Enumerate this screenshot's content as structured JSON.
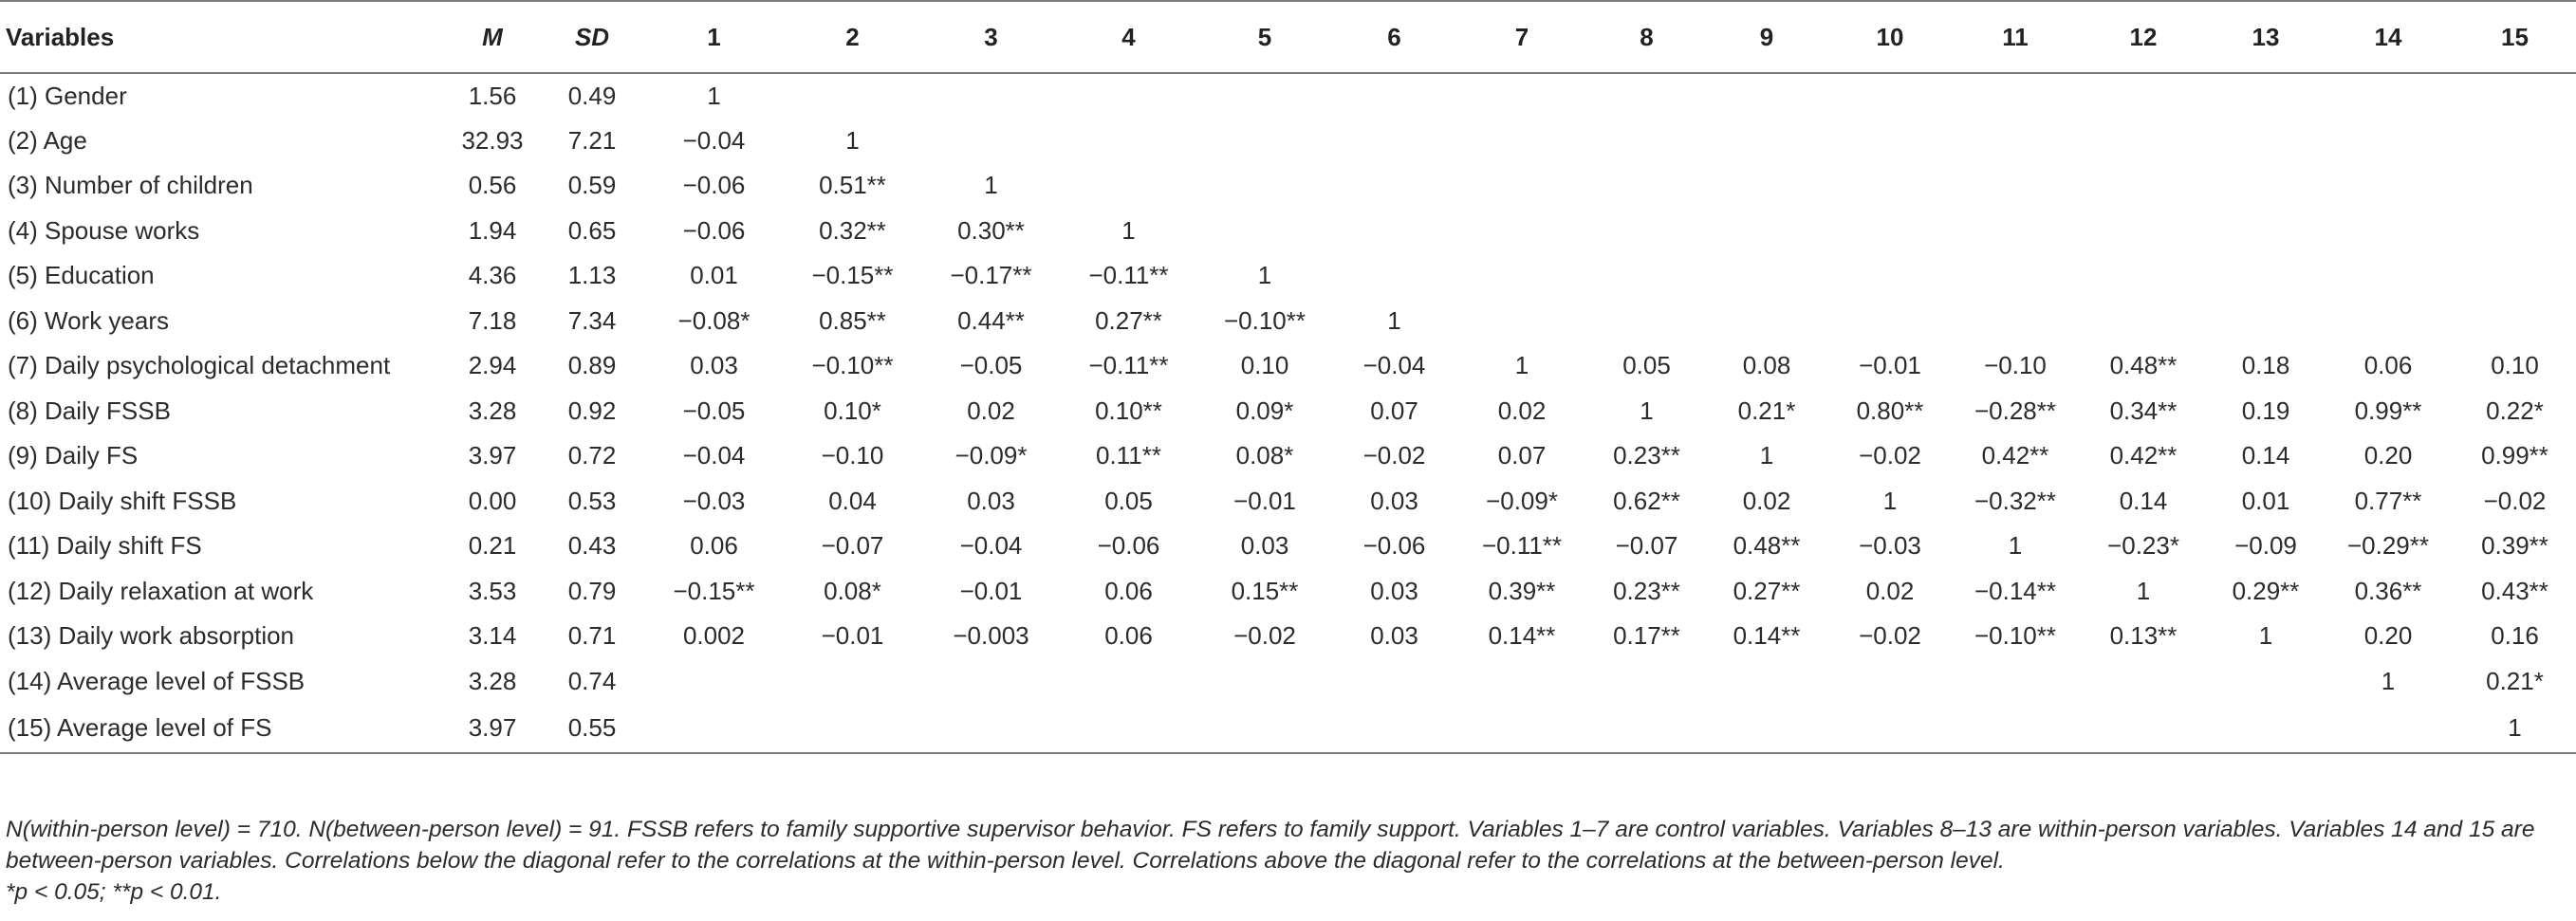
{
  "table": {
    "headers": [
      "Variables",
      "M",
      "SD",
      "1",
      "2",
      "3",
      "4",
      "5",
      "6",
      "7",
      "8",
      "9",
      "10",
      "11",
      "12",
      "13",
      "14",
      "15"
    ],
    "rows": [
      [
        "(1) Gender",
        "1.56",
        "0.49",
        "1",
        "",
        "",
        "",
        "",
        "",
        "",
        "",
        "",
        "",
        "",
        "",
        "",
        "",
        ""
      ],
      [
        "(2) Age",
        "32.93",
        "7.21",
        "−0.04",
        "1",
        "",
        "",
        "",
        "",
        "",
        "",
        "",
        "",
        "",
        "",
        "",
        "",
        ""
      ],
      [
        "(3) Number of children",
        "0.56",
        "0.59",
        "−0.06",
        "0.51**",
        "1",
        "",
        "",
        "",
        "",
        "",
        "",
        "",
        "",
        "",
        "",
        "",
        ""
      ],
      [
        "(4) Spouse works",
        "1.94",
        "0.65",
        "−0.06",
        "0.32**",
        "0.30**",
        "1",
        "",
        "",
        "",
        "",
        "",
        "",
        "",
        "",
        "",
        "",
        ""
      ],
      [
        "(5) Education",
        "4.36",
        "1.13",
        "0.01",
        "−0.15**",
        "−0.17**",
        "−0.11**",
        "1",
        "",
        "",
        "",
        "",
        "",
        "",
        "",
        "",
        "",
        ""
      ],
      [
        "(6) Work years",
        "7.18",
        "7.34",
        "−0.08*",
        "0.85**",
        "0.44**",
        "0.27**",
        "−0.10**",
        "1",
        "",
        "",
        "",
        "",
        "",
        "",
        "",
        "",
        ""
      ],
      [
        "(7) Daily psychological detachment",
        "2.94",
        "0.89",
        "0.03",
        "−0.10**",
        "−0.05",
        "−0.11**",
        "0.10",
        "−0.04",
        "1",
        "0.05",
        "0.08",
        "−0.01",
        "−0.10",
        "0.48**",
        "0.18",
        "0.06",
        "0.10"
      ],
      [
        "(8) Daily FSSB",
        "3.28",
        "0.92",
        "−0.05",
        "0.10*",
        "0.02",
        "0.10**",
        "0.09*",
        "0.07",
        "0.02",
        "1",
        "0.21*",
        "0.80**",
        "−0.28**",
        "0.34**",
        "0.19",
        "0.99**",
        "0.22*"
      ],
      [
        "(9) Daily FS",
        "3.97",
        "0.72",
        "−0.04",
        "−0.10",
        "−0.09*",
        "0.11**",
        "0.08*",
        "−0.02",
        "0.07",
        "0.23**",
        "1",
        "−0.02",
        "0.42**",
        "0.42**",
        "0.14",
        "0.20",
        "0.99**"
      ],
      [
        "(10) Daily shift FSSB",
        "0.00",
        "0.53",
        "−0.03",
        "0.04",
        "0.03",
        "0.05",
        "−0.01",
        "0.03",
        "−0.09*",
        "0.62**",
        "0.02",
        "1",
        "−0.32**",
        "0.14",
        "0.01",
        "0.77**",
        "−0.02"
      ],
      [
        "(11) Daily shift FS",
        "0.21",
        "0.43",
        "0.06",
        "−0.07",
        "−0.04",
        "−0.06",
        "0.03",
        "−0.06",
        "−0.11**",
        "−0.07",
        "0.48**",
        "−0.03",
        "1",
        "−0.23*",
        "−0.09",
        "−0.29**",
        "0.39**"
      ],
      [
        "(12) Daily relaxation at work",
        "3.53",
        "0.79",
        "−0.15**",
        "0.08*",
        "−0.01",
        "0.06",
        "0.15**",
        "0.03",
        "0.39**",
        "0.23**",
        "0.27**",
        "0.02",
        "−0.14**",
        "1",
        "0.29**",
        "0.36**",
        "0.43**"
      ],
      [
        "(13) Daily work absorption",
        "3.14",
        "0.71",
        "0.002",
        "−0.01",
        "−0.003",
        "0.06",
        "−0.02",
        "0.03",
        "0.14**",
        "0.17**",
        "0.14**",
        "−0.02",
        "−0.10**",
        "0.13**",
        "1",
        "0.20",
        "0.16"
      ],
      [
        "(14) Average level of FSSB",
        "3.28",
        "0.74",
        "",
        "",
        "",
        "",
        "",
        "",
        "",
        "",
        "",
        "",
        "",
        "",
        "",
        "1",
        "0.21*"
      ],
      [
        "(15) Average level of FS",
        "3.97",
        "0.55",
        "",
        "",
        "",
        "",
        "",
        "",
        "",
        "",
        "",
        "",
        "",
        "",
        "",
        "",
        "1"
      ]
    ]
  },
  "notes": {
    "line1": "N(within-person level) = 710. N(between-person level) = 91. FSSB refers to family supportive supervisor behavior. FS refers to family support. Variables 1–7 are control variables. Variables 8–13 are within-person variables. Variables 14 and 15 are between-person variables. Correlations below the diagonal refer to the correlations at the within-person level. Correlations above the diagonal refer to the correlations at the between-person level.",
    "line2": "*p < 0.05; **p < 0.01."
  }
}
